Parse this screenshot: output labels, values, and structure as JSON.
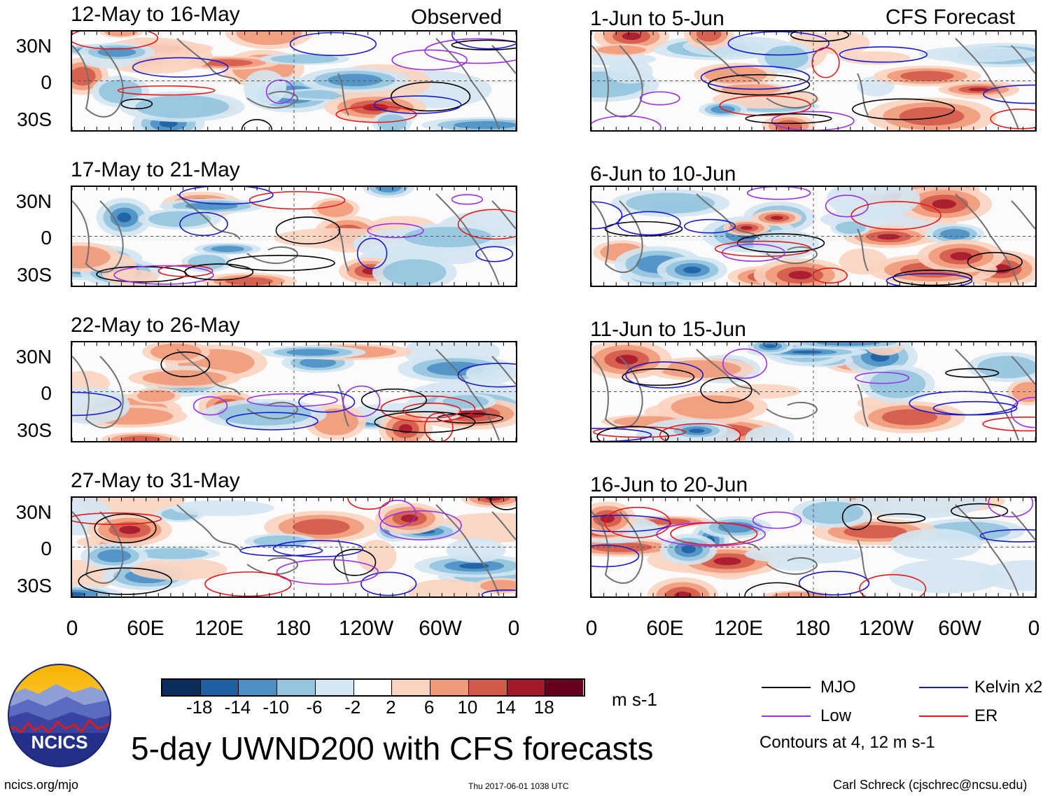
{
  "figure": {
    "title": "5-day UWND200 with CFS forecasts",
    "source_url": "ncics.org/mjo",
    "timestamp": "Thu 2017-06-01 1038 UTC",
    "author": "Carl Schreck (cjschrec@ncsu.edu)",
    "logo_text": "NCICS"
  },
  "columns": {
    "left_label": "Observed",
    "right_label": "CFS Forecast"
  },
  "panels": {
    "observed": [
      {
        "title": "12-May to 16-May"
      },
      {
        "title": "17-May to 21-May"
      },
      {
        "title": "22-May to 26-May"
      },
      {
        "title": "27-May to 31-May"
      }
    ],
    "forecast": [
      {
        "title": "1-Jun to 5-Jun"
      },
      {
        "title": "6-Jun to 10-Jun"
      },
      {
        "title": "11-Jun to 15-Jun"
      },
      {
        "title": "16-Jun to 20-Jun"
      }
    ]
  },
  "axes": {
    "y_ticks": [
      "30N",
      "0",
      "30S"
    ],
    "x_ticks": [
      "0",
      "60E",
      "120E",
      "180",
      "120W",
      "60W",
      "0"
    ]
  },
  "colorbar": {
    "unit": "m s-1",
    "ticks": [
      "-18",
      "-14",
      "-10",
      "-6",
      "-2",
      "2",
      "6",
      "10",
      "14",
      "18"
    ],
    "colors": [
      "#0a2e5c",
      "#1f5fa3",
      "#4b90c4",
      "#94c4df",
      "#d3e6f1",
      "#ffffff",
      "#fbd3c0",
      "#ef9a7a",
      "#d35a4a",
      "#a6182c",
      "#67001f"
    ]
  },
  "legend": {
    "items": [
      {
        "label": "MJO",
        "color": "#000000"
      },
      {
        "label": "Kelvin x2",
        "color": "#1a1acd"
      },
      {
        "label": "Low",
        "color": "#9b30e6"
      },
      {
        "label": "ER",
        "color": "#e31a1c"
      }
    ],
    "note": "Contours at 4, 12 m s-1"
  }
}
